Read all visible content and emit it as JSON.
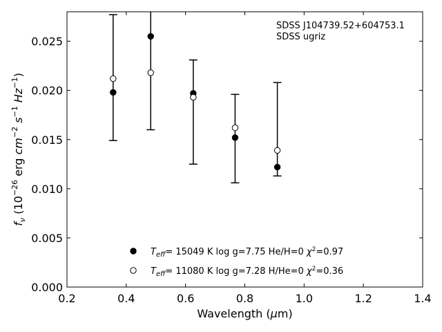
{
  "chart_data": {
    "type": "scatter",
    "annotations": [
      "SDSS J104739.52+604753.1",
      "SDSS ugriz"
    ],
    "xlabel": "Wavelength (μm)",
    "ylabel": "f_ν (10^-26 erg cm^-2 s^-1 Hz^-1)",
    "xlim": [
      0.2,
      1.4
    ],
    "ylim": [
      0.0,
      0.028
    ],
    "xticks": [
      0.2,
      0.4,
      0.6,
      0.8,
      1.0,
      1.2,
      1.4
    ],
    "xtick_labels": [
      "0.2",
      "0.4",
      "0.6",
      "0.8",
      "1.0",
      "1.2",
      "1.4"
    ],
    "yticks": [
      0.0,
      0.005,
      0.01,
      0.015,
      0.02,
      0.025
    ],
    "ytick_labels": [
      "0.000",
      "0.005",
      "0.010",
      "0.015",
      "0.020",
      "0.025"
    ],
    "grid": false,
    "legend_position": "bottom-center",
    "observed": {
      "x": [
        0.3557,
        0.4825,
        0.6261,
        0.7672,
        0.9097
      ],
      "y": [
        0.0198,
        0.0255,
        0.0197,
        0.0152,
        0.0122
      ],
      "err_low": [
        0.0149,
        0.016,
        0.0125,
        0.0106,
        0.0113
      ],
      "err_high": [
        0.0277,
        0.029,
        0.0231,
        0.0196,
        0.0208
      ]
    },
    "series": [
      {
        "legend": "T_eff= 15049 K  log g=7.75  He/H=0  χ²=0.97",
        "marker": "filled",
        "x": [
          0.3557,
          0.4825,
          0.6261,
          0.7672,
          0.9097
        ],
        "values": [
          0.0198,
          0.0255,
          0.0197,
          0.0152,
          0.0122
        ]
      },
      {
        "legend": "T_eff= 11080 K  log g=7.28  H/He=0  χ²=0.36",
        "marker": "open",
        "x": [
          0.3557,
          0.4825,
          0.6261,
          0.7672,
          0.9097
        ],
        "values": [
          0.0212,
          0.0218,
          0.0193,
          0.0162,
          0.0139
        ]
      }
    ]
  },
  "legend_parts": [
    {
      "t": "T",
      "sub": "eff",
      "a": "= 15049 K  log g=7.75  He/H=0  ",
      "chi": "χ",
      "sup": "2",
      "b": "=0.97"
    },
    {
      "t": "T",
      "sub": "eff",
      "a": "= 11080 K  log g=7.28  H/He=0  ",
      "chi": "χ",
      "sup": "2",
      "b": "=0.36"
    }
  ],
  "xlabel_parts": {
    "pre": "Wavelength (",
    "mu": "μ",
    "post": "m)"
  },
  "ylabel_parts": {
    "f": "f",
    "nu": "ν",
    "a": " (10",
    "e1": "−26",
    "b": " erg ",
    "cm": "cm",
    "e2": "−2",
    "s": "s",
    "e3": "−1",
    "hz": "Hz",
    "e4": "−1",
    "c": ")"
  }
}
